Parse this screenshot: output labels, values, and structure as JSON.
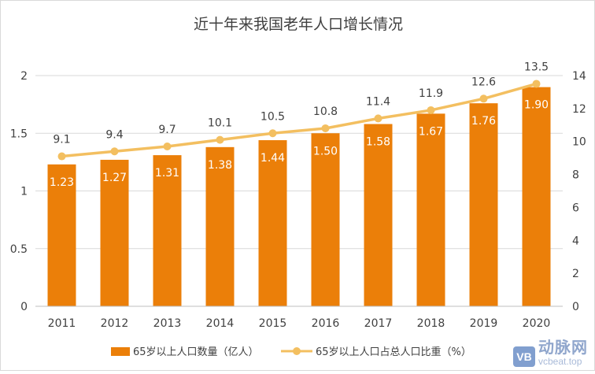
{
  "chart_data": {
    "type": "bar+line",
    "title": "近十年来我国老年人口增长情况",
    "categories": [
      "2011",
      "2012",
      "2013",
      "2014",
      "2015",
      "2016",
      "2017",
      "2018",
      "2019",
      "2020"
    ],
    "series": [
      {
        "name": "65岁以上人口数量（亿人）",
        "type": "bar",
        "axis": "left",
        "color": "#EB7F09",
        "values": [
          1.23,
          1.27,
          1.31,
          1.38,
          1.44,
          1.5,
          1.58,
          1.67,
          1.76,
          1.9
        ],
        "labels": [
          "1.23",
          "1.27",
          "1.31",
          "1.38",
          "1.44",
          "1.50",
          "1.58",
          "1.67",
          "1.76",
          "1.90"
        ]
      },
      {
        "name": "65岁以上人口占总人口比重（%）",
        "type": "line",
        "axis": "right",
        "color": "#F3BF60",
        "values": [
          9.1,
          9.4,
          9.7,
          10.1,
          10.5,
          10.8,
          11.4,
          11.9,
          12.6,
          13.5
        ],
        "labels": [
          "9.1",
          "9.4",
          "9.7",
          "10.1",
          "10.5",
          "10.8",
          "11.4",
          "11.9",
          "12.6",
          "13.5"
        ]
      }
    ],
    "y_left": {
      "min": 0,
      "max": 2,
      "ticks": [
        0,
        0.5,
        1,
        1.5,
        2
      ],
      "tick_labels": [
        "0",
        "0.5",
        "1",
        "1.5",
        "2"
      ]
    },
    "y_right": {
      "min": 0,
      "max": 14,
      "ticks": [
        0,
        2,
        4,
        6,
        8,
        10,
        12,
        14
      ],
      "tick_labels": [
        "0",
        "2",
        "4",
        "6",
        "8",
        "10",
        "12",
        "14"
      ]
    },
    "grid": true,
    "legend_position": "bottom",
    "watermark": {
      "name": "动脉网",
      "url": "vcbeat.top",
      "logo_text": "VB"
    }
  }
}
